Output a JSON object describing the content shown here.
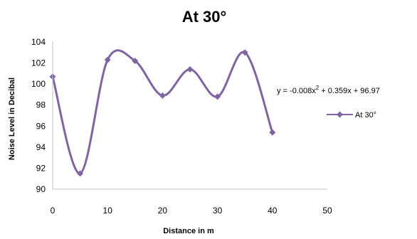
{
  "chart_data": {
    "type": "line",
    "title": "At 30°",
    "xlabel": "Distance in m",
    "ylabel": "Noise Level in Decibal",
    "xlim": [
      0,
      50
    ],
    "ylim": [
      90,
      104
    ],
    "x_ticks": [
      0,
      10,
      20,
      30,
      40,
      50
    ],
    "y_ticks": [
      90,
      92,
      94,
      96,
      98,
      100,
      102,
      104
    ],
    "grid": false,
    "smooth": true,
    "legend_position": "right",
    "series": [
      {
        "name": "At 30°",
        "color": "#8064a2",
        "marker": "diamond",
        "x": [
          0,
          5,
          10,
          15,
          20,
          25,
          30,
          35,
          40
        ],
        "y": [
          100.7,
          91.5,
          102.3,
          102.2,
          98.9,
          101.4,
          98.8,
          103.0,
          95.4
        ]
      }
    ],
    "annotations": {
      "equation": {
        "prefix": "y = -0.008x",
        "exponent": "2",
        "suffix": " + 0.359x + 96.97"
      }
    }
  }
}
